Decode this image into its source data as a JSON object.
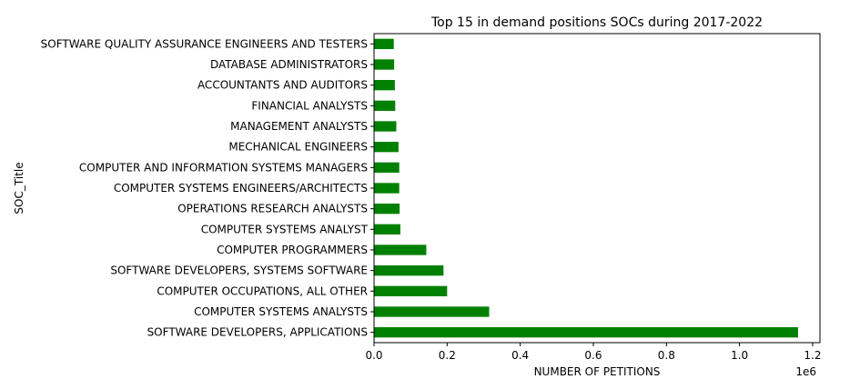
{
  "chart_data": {
    "type": "bar",
    "orientation": "horizontal",
    "title": "Top 15 in demand positions SOCs during 2017-2022",
    "xlabel": "NUMBER OF PETITIONS",
    "ylabel": "SOC_Title",
    "x_offset_label": "1e6",
    "x_scale_factor": 1000000,
    "xlim": [
      0,
      1.22
    ],
    "xticks": [
      0.0,
      0.2,
      0.4,
      0.6,
      0.8,
      1.0,
      1.2
    ],
    "xtick_labels": [
      "0.0",
      "0.2",
      "0.4",
      "0.6",
      "0.8",
      "1.0",
      "1.2"
    ],
    "bar_color": "#008000",
    "grid": false,
    "categories": [
      "SOFTWARE DEVELOPERS, APPLICATIONS",
      "COMPUTER SYSTEMS ANALYSTS",
      "COMPUTER OCCUPATIONS, ALL OTHER",
      "SOFTWARE DEVELOPERS, SYSTEMS SOFTWARE",
      "COMPUTER PROGRAMMERS",
      "COMPUTER SYSTEMS ANALYST",
      "OPERATIONS RESEARCH ANALYSTS",
      "COMPUTER SYSTEMS ENGINEERS/ARCHITECTS",
      "COMPUTER AND INFORMATION SYSTEMS MANAGERS",
      "MECHANICAL ENGINEERS",
      "MANAGEMENT ANALYSTS",
      "FINANCIAL ANALYSTS",
      "ACCOUNTANTS AND AUDITORS",
      "DATABASE ADMINISTRATORS",
      "SOFTWARE QUALITY ASSURANCE ENGINEERS AND TESTERS"
    ],
    "values": [
      1160000,
      315000,
      200000,
      190000,
      143000,
      72000,
      70000,
      69000,
      69000,
      67000,
      61000,
      58000,
      57000,
      55000,
      54000
    ]
  }
}
